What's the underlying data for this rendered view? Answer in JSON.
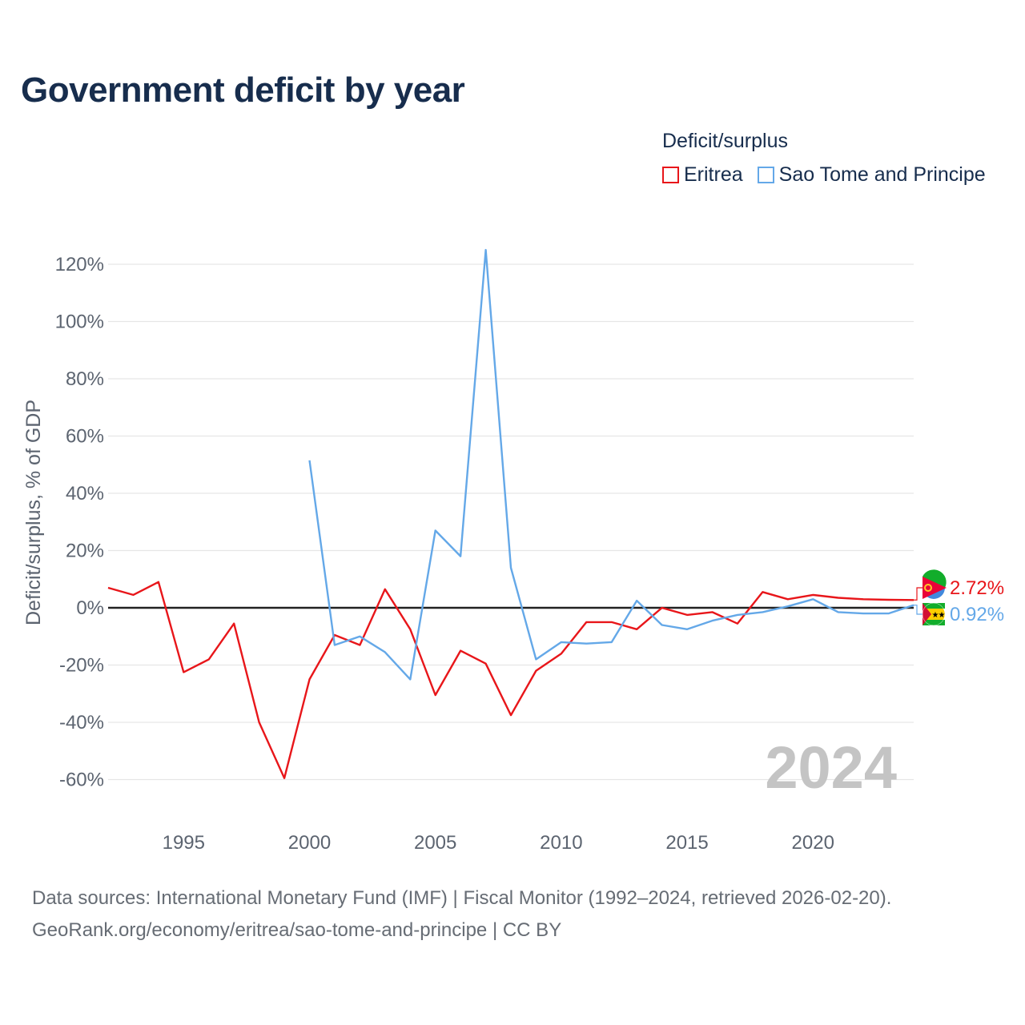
{
  "title": "Government deficit by year",
  "legend": {
    "title": "Deficit/surplus",
    "items": [
      {
        "name": "Eritrea",
        "color": "#e8161a"
      },
      {
        "name": "Sao Tome and Principe",
        "color": "#64a8e8"
      }
    ]
  },
  "footer": {
    "line1": "Data sources: International Monetary Fund (IMF) | Fiscal Monitor (1992–2024, retrieved 2026-02-20).",
    "line2": "GeoRank.org/economy/eritrea/sao-tome-and-principe | CC BY"
  },
  "chart_data": {
    "type": "line",
    "title": "Government deficit by year",
    "ylabel": "Deficit/surplus, % of GDP",
    "xlabel": "",
    "xlim": [
      1992,
      2024
    ],
    "ylim": [
      -70,
      130
    ],
    "yticks": [
      -60,
      -40,
      -20,
      0,
      20,
      40,
      60,
      80,
      100,
      120
    ],
    "ytick_labels": [
      "-60%",
      "-40%",
      "-20%",
      "0%",
      "20%",
      "40%",
      "60%",
      "80%",
      "100%",
      "120%"
    ],
    "xticks": [
      1995,
      2000,
      2005,
      2010,
      2015,
      2020
    ],
    "xtick_labels": [
      "1995",
      "2000",
      "2005",
      "2010",
      "2015",
      "2020"
    ],
    "year_watermark": "2024",
    "series": [
      {
        "name": "Eritrea",
        "color": "#e8161a",
        "end_label": "2.72%",
        "points": [
          [
            1992,
            7.0
          ],
          [
            1993,
            4.5
          ],
          [
            1994,
            9.0
          ],
          [
            1995,
            -22.5
          ],
          [
            1996,
            -18.0
          ],
          [
            1997,
            -5.5
          ],
          [
            1998,
            -40.0
          ],
          [
            1999,
            -59.5
          ],
          [
            2000,
            -25.0
          ],
          [
            2001,
            -9.5
          ],
          [
            2002,
            -13.0
          ],
          [
            2003,
            6.5
          ],
          [
            2004,
            -7.5
          ],
          [
            2005,
            -30.5
          ],
          [
            2006,
            -15.0
          ],
          [
            2007,
            -19.5
          ],
          [
            2008,
            -37.5
          ],
          [
            2009,
            -22.0
          ],
          [
            2010,
            -16.0
          ],
          [
            2011,
            -5.0
          ],
          [
            2012,
            -5.0
          ],
          [
            2013,
            -7.5
          ],
          [
            2014,
            0.0
          ],
          [
            2015,
            -2.5
          ],
          [
            2016,
            -1.5
          ],
          [
            2017,
            -5.5
          ],
          [
            2018,
            5.5
          ],
          [
            2019,
            3.0
          ],
          [
            2020,
            4.5
          ],
          [
            2021,
            3.5
          ],
          [
            2022,
            3.0
          ],
          [
            2023,
            2.8
          ],
          [
            2024,
            2.72
          ]
        ]
      },
      {
        "name": "Sao Tome and Principe",
        "color": "#64a8e8",
        "end_label": "0.92%",
        "points": [
          [
            2000,
            51.5
          ],
          [
            2001,
            -13.0
          ],
          [
            2002,
            -10.0
          ],
          [
            2003,
            -15.5
          ],
          [
            2004,
            -25.0
          ],
          [
            2005,
            27.0
          ],
          [
            2006,
            18.0
          ],
          [
            2007,
            125.0
          ],
          [
            2008,
            14.0
          ],
          [
            2009,
            -18.0
          ],
          [
            2010,
            -12.0
          ],
          [
            2011,
            -12.5
          ],
          [
            2012,
            -12.0
          ],
          [
            2013,
            2.5
          ],
          [
            2014,
            -6.0
          ],
          [
            2015,
            -7.5
          ],
          [
            2016,
            -4.5
          ],
          [
            2017,
            -2.5
          ],
          [
            2018,
            -1.5
          ],
          [
            2019,
            0.5
          ],
          [
            2020,
            3.0
          ],
          [
            2021,
            -1.5
          ],
          [
            2022,
            -2.0
          ],
          [
            2023,
            -2.0
          ],
          [
            2024,
            0.92
          ]
        ]
      }
    ]
  }
}
